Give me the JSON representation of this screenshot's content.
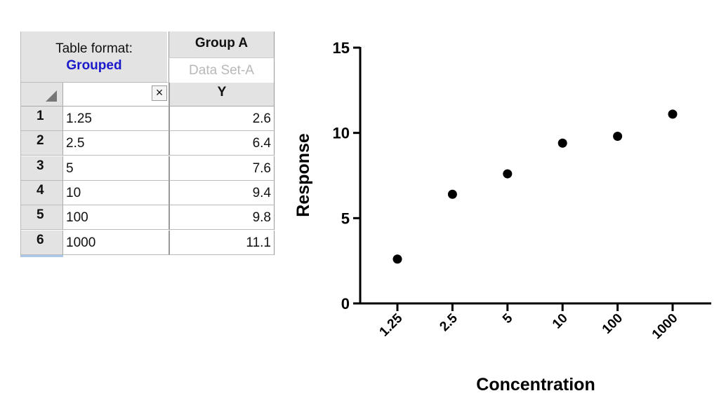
{
  "table": {
    "format_label": "Table format:",
    "format_value": "Grouped",
    "group_title": "Group A",
    "dataset_placeholder": "Data Set-A",
    "x_clear_symbol": "×",
    "y_header": "Y",
    "rows": [
      {
        "num": "1",
        "x": "1.25",
        "y": "2.6"
      },
      {
        "num": "2",
        "x": "2.5",
        "y": "6.4"
      },
      {
        "num": "3",
        "x": "5",
        "y": "7.6"
      },
      {
        "num": "4",
        "x": "10",
        "y": "9.4"
      },
      {
        "num": "5",
        "x": "100",
        "y": "9.8"
      },
      {
        "num": "6",
        "x": "1000",
        "y": "11.1"
      }
    ],
    "colors": {
      "grouped": "#1a1acc",
      "placeholder": "#b8b8b8"
    }
  },
  "chart_data": {
    "type": "scatter",
    "categories": [
      "1.25",
      "2.5",
      "5",
      "10",
      "100",
      "1000"
    ],
    "values": [
      2.6,
      6.4,
      7.6,
      9.4,
      9.8,
      11.1
    ],
    "title": "",
    "xlabel": "Concentration",
    "ylabel": "Response",
    "ylim": [
      0,
      15
    ],
    "yticks": [
      "0",
      "5",
      "10",
      "15"
    ],
    "grid": false
  }
}
